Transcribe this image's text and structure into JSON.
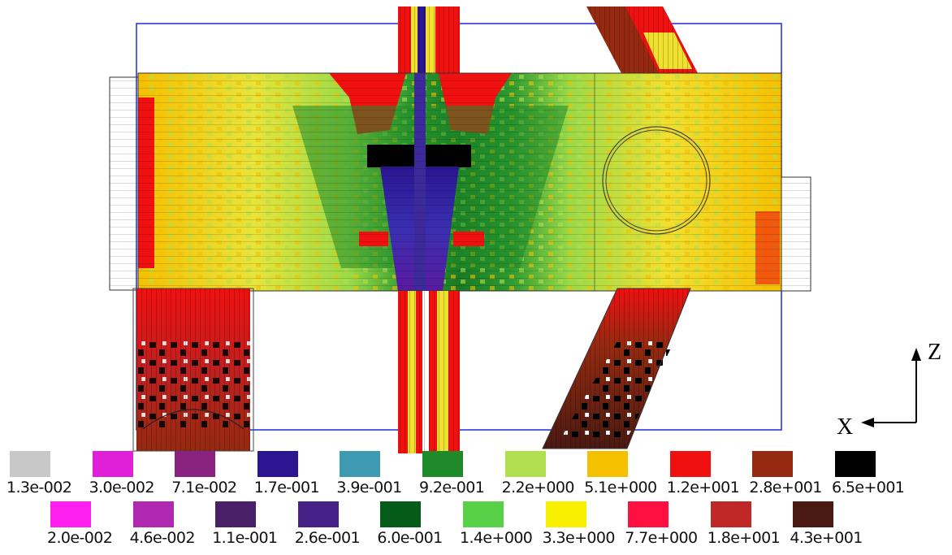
{
  "axes": {
    "z_label": "Z",
    "x_label": "X"
  },
  "legend": {
    "row1": [
      {
        "label": "1.3e-002",
        "color": "#c8c8c8"
      },
      {
        "label": "3.0e-002",
        "color": "#e020d8"
      },
      {
        "label": "7.1e-002",
        "color": "#8a2380"
      },
      {
        "label": "1.7e-001",
        "color": "#2b1590"
      },
      {
        "label": "3.9e-001",
        "color": "#3d9ab0"
      },
      {
        "label": "9.2e-001",
        "color": "#1f8a2a"
      },
      {
        "label": "2.2e+000",
        "color": "#b0e050"
      },
      {
        "label": "5.1e+000",
        "color": "#f5c000"
      },
      {
        "label": "1.2e+001",
        "color": "#f01010"
      },
      {
        "label": "2.8e+001",
        "color": "#952a10"
      },
      {
        "label": "6.5e+001",
        "color": "#000000"
      }
    ],
    "row2": [
      {
        "label": "2.0e-002",
        "color": "#ff20f0"
      },
      {
        "label": "4.6e-002",
        "color": "#b028b0"
      },
      {
        "label": "1.1e-001",
        "color": "#4a2068"
      },
      {
        "label": "2.6e-001",
        "color": "#452188"
      },
      {
        "label": "6.0e-001",
        "color": "#055c18"
      },
      {
        "label": "1.4e+000",
        "color": "#58d048"
      },
      {
        "label": "3.3e+000",
        "color": "#f8f000"
      },
      {
        "label": "7.7e+000",
        "color": "#ff1040"
      },
      {
        "label": "1.8e+001",
        "color": "#c02828"
      },
      {
        "label": "4.3e+001",
        "color": "#4a1a12"
      }
    ]
  }
}
